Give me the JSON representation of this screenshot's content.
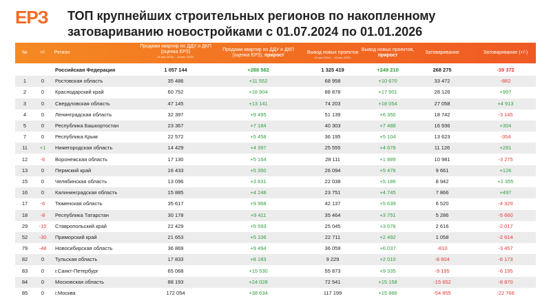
{
  "header": {
    "logo": "ЕРЗ",
    "title": "ТОП крупнейших строительных регионов по накопленному затовариванию новостройками с 01.07.2024 по 01.01.2026"
  },
  "table": {
    "columns": [
      {
        "title": "№"
      },
      {
        "title": "+/-"
      },
      {
        "title": "Регион"
      },
      {
        "title": "Продажи квартир по ДДУ и ДКП (оценка ЕРЗ)",
        "note": "18 мес 2024г. – 18 мес 2025г."
      },
      {
        "title": "Продажи квартир по ДДУ и ДКП (оценка ЕРЗ),",
        "emphasis": "прирост"
      },
      {
        "title": "Вывод новых проектов",
        "note": "18 мес 2024г. – 18 мес 2025г."
      },
      {
        "title": "Вывод новых проектов,",
        "emphasis": "прирост"
      },
      {
        "title": "Затоваривание"
      },
      {
        "title": "Затоваривание (+/-)"
      }
    ],
    "total": {
      "region": "Российская Федерация",
      "values": [
        "1 057 144",
        "+288 582",
        "1 325 419",
        "+249 210",
        "268 275",
        "-39 372"
      ]
    },
    "rows": [
      [
        "1",
        "0",
        "Ростовская область",
        "35 486",
        "+11 552",
        "68 958",
        "+10 670",
        "33 472",
        "-882"
      ],
      [
        "2",
        "0",
        "Краснодарский край",
        "60 752",
        "+16 904",
        "88 878",
        "+17 901",
        "28 126",
        "+997"
      ],
      [
        "3",
        "0",
        "Свердловская область",
        "47 145",
        "+13 141",
        "74 203",
        "+18 054",
        "27 058",
        "+4 913"
      ],
      [
        "4",
        "0",
        "Ленинградская область",
        "32 397",
        "+9 495",
        "51 139",
        "+6 350",
        "18 742",
        "-3 145"
      ],
      [
        "5",
        "0",
        "Республика Башкортостан",
        "23 367",
        "+7 184",
        "40 303",
        "+7 488",
        "16 936",
        "+304"
      ],
      [
        "7",
        "0",
        "Республика Крым",
        "22 572",
        "+5 458",
        "36 195",
        "+5 104",
        "13 623",
        "-354"
      ],
      [
        "11",
        "+1",
        "Нижегородская область",
        "14 429",
        "+4 397",
        "25 555",
        "+4 678",
        "11 126",
        "+281"
      ],
      [
        "12",
        "-6",
        "Воронежская область",
        "17 130",
        "+5 164",
        "28 111",
        "+1 889",
        "10 981",
        "-3 275"
      ],
      [
        "13",
        "0",
        "Пермский край",
        "16 433",
        "+5 350",
        "26 094",
        "+5 476",
        "9 661",
        "+126"
      ],
      [
        "15",
        "0",
        "Челябинская область",
        "13 096",
        "+3 831",
        "22 038",
        "+5 186",
        "8 942",
        "+1 355"
      ],
      [
        "16",
        "0",
        "Калининградская область",
        "15 885",
        "+4 248",
        "23 751",
        "+4 745",
        "7 866",
        "+497"
      ],
      [
        "17",
        "-6",
        "Тюменская область",
        "35 617",
        "+9 968",
        "42 137",
        "+5 639",
        "6 520",
        "-4 329"
      ],
      [
        "18",
        "-8",
        "Республика Татарстан",
        "30 178",
        "+9 411",
        "35 464",
        "+3 751",
        "5 286",
        "-5 660"
      ],
      [
        "29",
        "-10",
        "Ставропольский край",
        "22 429",
        "+5 593",
        "25 045",
        "+3 576",
        "2 616",
        "-2 017"
      ],
      [
        "52",
        "-30",
        "Приморский край",
        "21 653",
        "+5 106",
        "22 711",
        "+2 492",
        "1 058",
        "-2 614"
      ],
      [
        "79",
        "-48",
        "Новосибирская область",
        "36 869",
        "+9 494",
        "36 059",
        "+6 037",
        "-810",
        "-3 457"
      ],
      [
        "82",
        "0",
        "Тульская область",
        "17 833",
        "+8 183",
        "9 229",
        "+2 010",
        "-8 604",
        "-6 173"
      ],
      [
        "83",
        "0",
        "г.Санкт-Петербург",
        "65 068",
        "+15 530",
        "55 873",
        "+9 335",
        "-9 195",
        "-6 195"
      ],
      [
        "84",
        "0",
        "Московская область",
        "88 193",
        "+24 028",
        "72 541",
        "+15 158",
        "-15 652",
        "-8 870"
      ],
      [
        "85",
        "0",
        "г.Москва",
        "172 054",
        "+38 634",
        "117 199",
        "+15 866",
        "-54 855",
        "-22 768"
      ]
    ]
  }
}
